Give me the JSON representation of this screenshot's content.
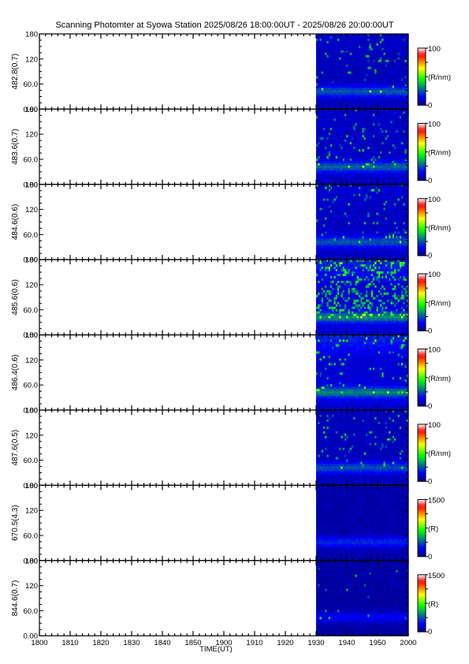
{
  "page_title": "Scanning Photomter at Syowa Station 2025/08/26 18:00:00UT - 2025/08/26 20:00:00UT",
  "chart_data": {
    "type": "heatmap",
    "title": "Scanning Photomter at Syowa Station 2025/08/26 18:00:00UT - 2025/08/26 20:00:00UT",
    "xlabel": "TIME(UT)",
    "x_ticklabels": [
      "1800",
      "1810",
      "1820",
      "1830",
      "1840",
      "1850",
      "1900",
      "1910",
      "1920",
      "1930",
      "1940",
      "1950",
      "2000"
    ],
    "x_range_min": [
      0,
      120
    ],
    "data_start_min": 90,
    "y_ticklabels": [
      "0.00",
      "60.0",
      "120",
      "180"
    ],
    "y_range": [
      0,
      180
    ],
    "colormap": [
      "#000080",
      "#0000ff",
      "#00ff00",
      "#ffff00",
      "#ff0000",
      "#ffffff"
    ],
    "panels": [
      {
        "label": "482.8(0.7)",
        "cbar_max": "100",
        "cbar_zero": "0",
        "units": "(R/nm)",
        "band_y": 42,
        "band_level": 0.18,
        "bg_level": 0.07,
        "upper_level": 0.09,
        "speckle": 0.05
      },
      {
        "label": "483.6(0.7)",
        "cbar_max": "100",
        "cbar_zero": "0",
        "units": "(R/nm)",
        "band_y": 42,
        "band_level": 0.19,
        "bg_level": 0.08,
        "upper_level": 0.08,
        "speckle": 0.05
      },
      {
        "label": "484.6(0.6)",
        "cbar_max": "100",
        "cbar_zero": "0",
        "units": "(R/nm)",
        "band_y": 42,
        "band_level": 0.17,
        "bg_level": 0.08,
        "upper_level": 0.1,
        "speckle": 0.05
      },
      {
        "label": "485.6(0.6)",
        "cbar_max": "100",
        "cbar_zero": "0",
        "units": "(R/nm)",
        "band_y": 42,
        "band_level": 0.22,
        "bg_level": 0.1,
        "upper_level": 0.2,
        "speckle": 0.25
      },
      {
        "label": "486.4(0.6)",
        "cbar_max": "100",
        "cbar_zero": "0",
        "units": "(R/nm)",
        "band_y": 42,
        "band_level": 0.21,
        "bg_level": 0.1,
        "upper_level": 0.2,
        "speckle": 0.06
      },
      {
        "label": "487.6(0.5)",
        "cbar_max": "100",
        "cbar_zero": "0",
        "units": "(R/nm)",
        "band_y": 42,
        "band_level": 0.17,
        "bg_level": 0.07,
        "upper_level": 0.07,
        "speckle": 0.05
      },
      {
        "label": "670.5(4.3)",
        "cbar_max": "1500",
        "cbar_zero": "0",
        "units": "(R)",
        "band_y": 44,
        "band_level": 0.14,
        "bg_level": 0.05,
        "upper_level": 0.05,
        "speckle": 0.0
      },
      {
        "label": "844.6(0.7)",
        "cbar_max": "1500",
        "cbar_zero": "0",
        "units": "(R)",
        "band_y": 44,
        "band_level": 0.1,
        "bg_level": 0.04,
        "upper_level": 0.05,
        "speckle": 0.01
      }
    ]
  }
}
